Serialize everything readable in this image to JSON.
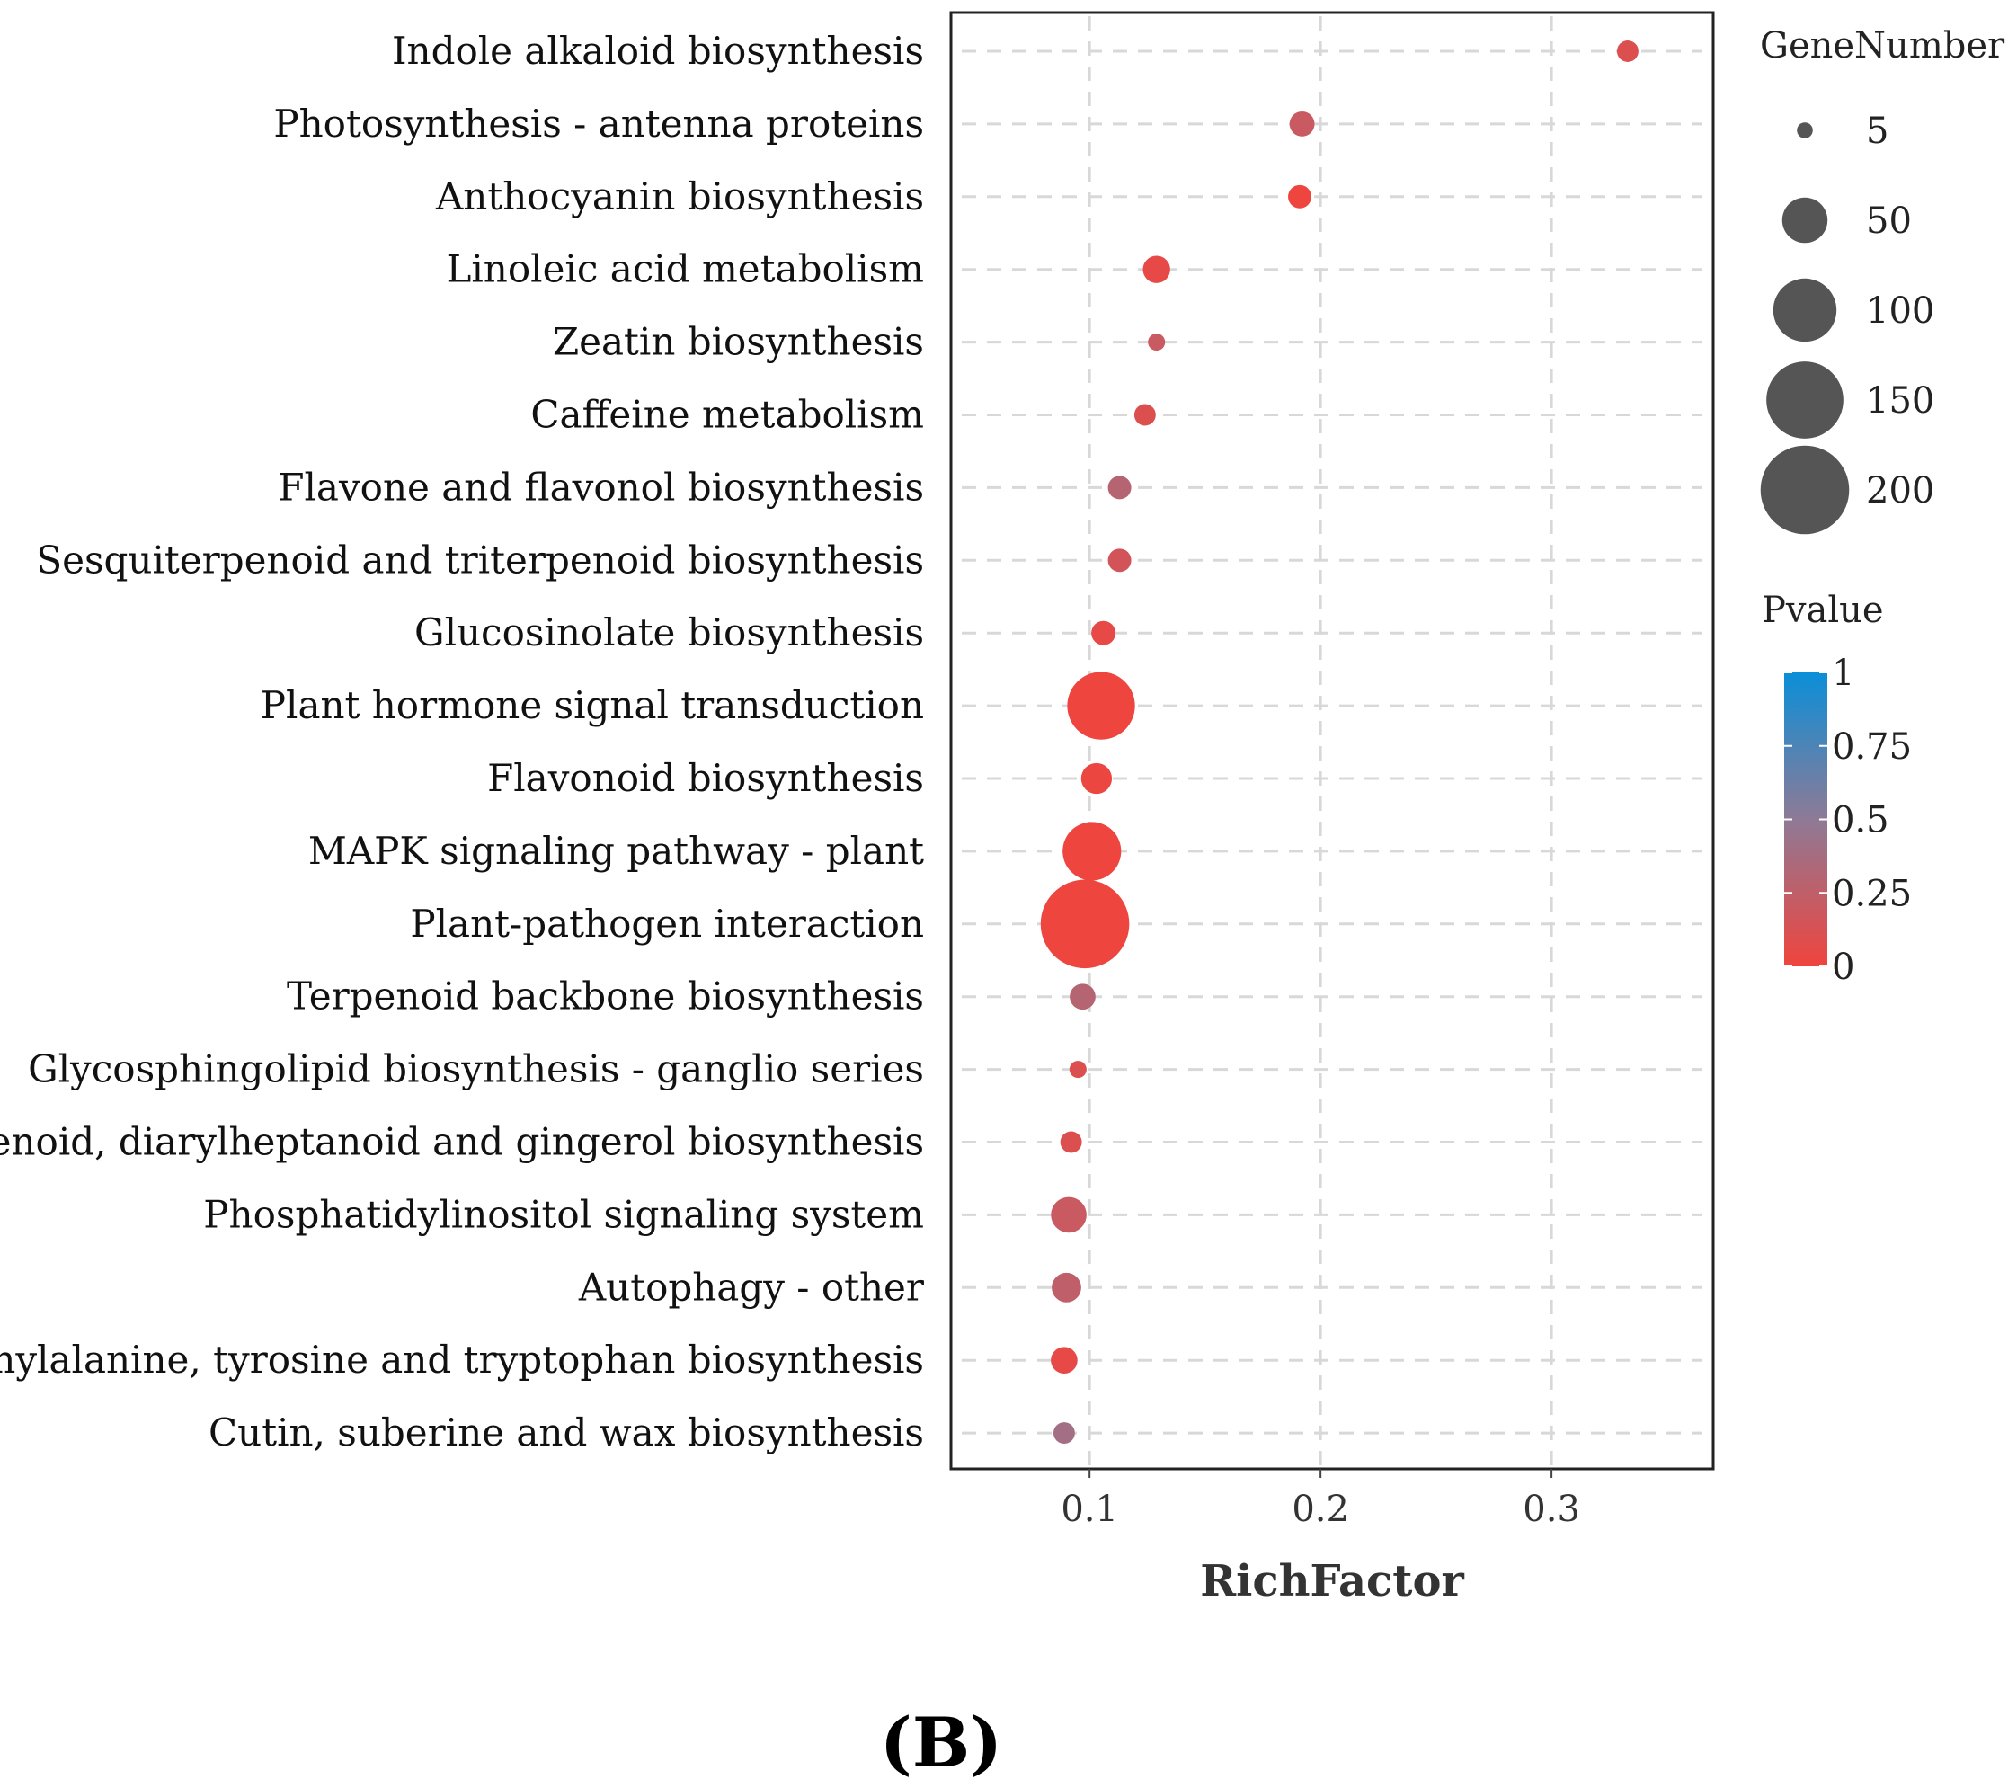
{
  "chart_data": {
    "type": "scatter",
    "subtype": "bubble",
    "title": "",
    "xlabel": "RichFactor",
    "ylabel": "",
    "xlim": [
      0.04,
      0.37
    ],
    "xticks": [
      0.1,
      0.2,
      0.3
    ],
    "xtick_labels": [
      "0.1",
      "0.2",
      "0.3"
    ],
    "grid": true,
    "categories": [
      "Indole alkaloid biosynthesis",
      "Photosynthesis - antenna proteins",
      "Anthocyanin biosynthesis",
      "Linoleic acid metabolism",
      "Zeatin biosynthesis",
      "Caffeine metabolism",
      "Flavone and flavonol biosynthesis",
      "Sesquiterpenoid and triterpenoid biosynthesis",
      "Glucosinolate biosynthesis",
      "Plant hormone signal transduction",
      "Flavonoid biosynthesis",
      "MAPK signaling pathway - plant",
      "Plant-pathogen interaction",
      "Terpenoid backbone biosynthesis",
      "Glycosphingolipid biosynthesis - ganglio series",
      "Stilbenoid, diarylheptanoid and gingerol biosynthesis",
      "Phosphatidylinositol signaling system",
      "Autophagy - other",
      "Phenylalanine, tyrosine and tryptophan biosynthesis",
      "Cutin, suberine and wax biosynthesis"
    ],
    "rich_factor": [
      0.333,
      0.192,
      0.191,
      0.129,
      0.129,
      0.124,
      0.113,
      0.113,
      0.106,
      0.105,
      0.103,
      0.101,
      0.098,
      0.097,
      0.095,
      0.092,
      0.091,
      0.09,
      0.089,
      0.089
    ],
    "gene_number": [
      10,
      14,
      12,
      17,
      6,
      10,
      12,
      12,
      13,
      115,
      22,
      85,
      200,
      15,
      6,
      10,
      30,
      20,
      16,
      10
    ],
    "pvalue": [
      0.1,
      0.2,
      0.01,
      0.05,
      0.2,
      0.1,
      0.3,
      0.15,
      0.05,
      0.01,
      0.02,
      0.01,
      0.01,
      0.3,
      0.1,
      0.1,
      0.2,
      0.25,
      0.05,
      0.4
    ],
    "size_legend": {
      "title": "GeneNumber",
      "values": [
        5,
        50,
        100,
        150,
        200
      ],
      "labels": [
        "5",
        "50",
        "100",
        "150",
        "200"
      ]
    },
    "color_legend": {
      "title": "Pvalue",
      "range": [
        0,
        1
      ],
      "ticks": [
        1,
        0.75,
        0.5,
        0.25,
        0
      ],
      "tick_labels": [
        "1",
        "0.75",
        "0.5",
        "0.25",
        "0"
      ],
      "low_color": "#f0443d",
      "mid_color": "#8e7a96",
      "high_color": "#0a8fd8"
    },
    "panel_label": "(B)"
  }
}
